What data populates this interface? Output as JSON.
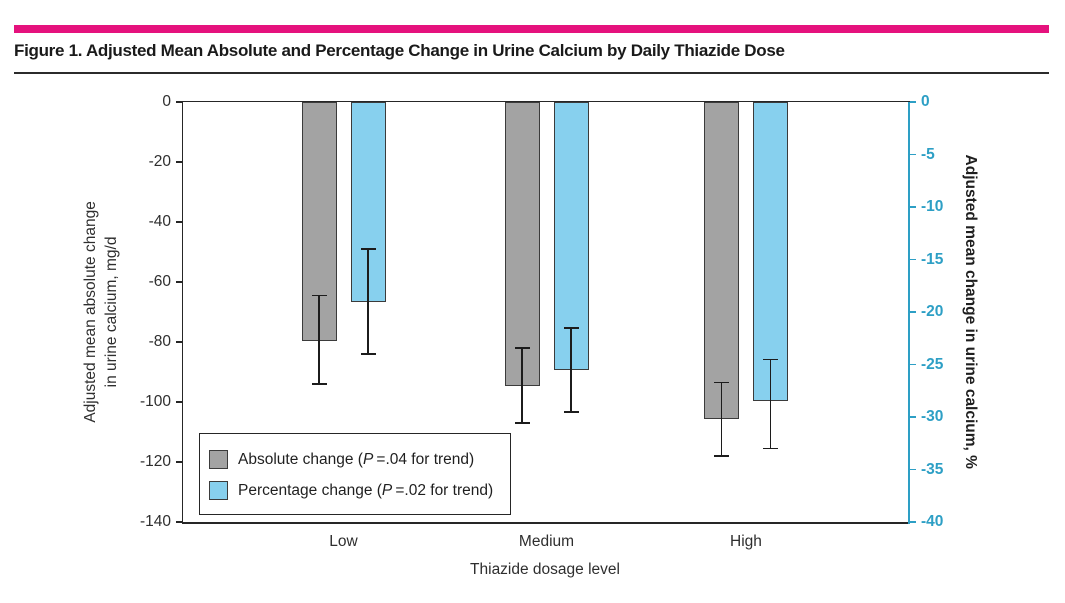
{
  "figure": {
    "title": "Figure 1. Adjusted Mean Absolute and Percentage Change in Urine Calcium by Daily Thiazide Dose",
    "accent_color": "#e5127d"
  },
  "chart_data": {
    "type": "bar",
    "categories": [
      "Low",
      "Medium",
      "High"
    ],
    "xlabel": "Thiazide dosage level",
    "grid": false,
    "legend_position": "inside-bottom-left",
    "left_axis": {
      "label_line1": "Adjusted mean absolute change",
      "label_line2": "in urine calcium, mg/d",
      "ticks": [
        0,
        -20,
        -40,
        -60,
        -80,
        -100,
        -120,
        -140
      ],
      "range": [
        0,
        -140
      ],
      "color": "#2e2e2e"
    },
    "right_axis": {
      "label": "Adjusted mean change in urine calcium, %",
      "ticks": [
        0,
        -5,
        -10,
        -15,
        -20,
        -25,
        -30,
        -35,
        -40
      ],
      "range": [
        0,
        -40
      ],
      "color": "#2d9fc5"
    },
    "series": [
      {
        "name": "Absolute change (P=.04 for trend)",
        "axis": "left",
        "unit": "mg/d",
        "color": "#a3a3a3",
        "values": [
          -79.5,
          -94.5,
          -105.5
        ],
        "ci_high": [
          -64.5,
          -82,
          -93.5
        ],
        "ci_low": [
          -94,
          -107,
          -118
        ]
      },
      {
        "name": "Percentage change (P=.02 for trend)",
        "axis": "right",
        "unit": "%",
        "color": "#87d0ee",
        "values": [
          -19,
          -25.5,
          -28.5
        ],
        "ci_high": [
          -14,
          -21.5,
          -24.5
        ],
        "ci_low": [
          -24,
          -29.5,
          -33
        ]
      }
    ]
  }
}
